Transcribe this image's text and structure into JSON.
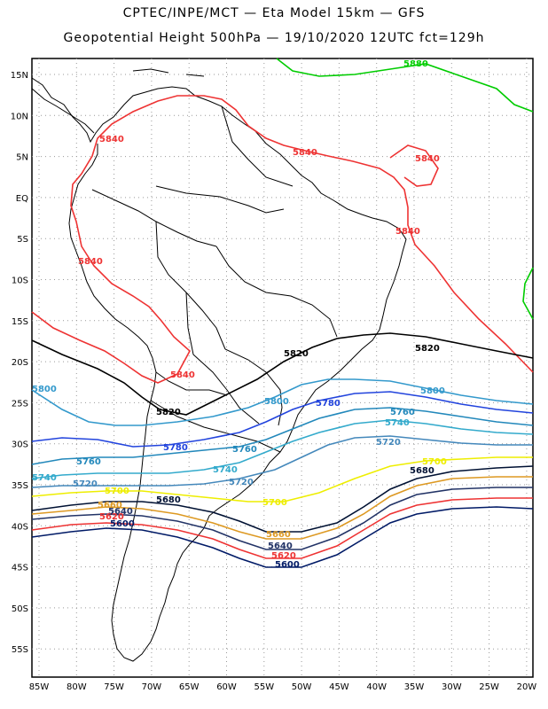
{
  "title_line1": "CPTEC/INPE/MCT —  Eta Model 15km — GFS",
  "title_line2": "Geopotential Height 500hPa — 19/10/2020 12UTC fct=129h",
  "lat_labels": [
    "15N",
    "10N",
    "5N",
    "EQ",
    "5S",
    "10S",
    "15S",
    "20S",
    "25S",
    "30S",
    "35S",
    "40S",
    "45S",
    "50S",
    "55S"
  ],
  "lon_labels": [
    "85W",
    "80W",
    "75W",
    "70W",
    "65W",
    "60W",
    "55W",
    "50W",
    "45W",
    "40W",
    "35W",
    "30W",
    "25W",
    "20W"
  ],
  "contours": [
    {
      "value": 5880,
      "label": "5880",
      "color": "#00cc00"
    },
    {
      "value": 5840,
      "label": "5840",
      "color": "#ee3333"
    },
    {
      "value": 5820,
      "label": "5820",
      "color": "#000000"
    },
    {
      "value": 5800,
      "label": "5800",
      "color": "#3399cc"
    },
    {
      "value": 5780,
      "label": "5780",
      "color": "#2244dd"
    },
    {
      "value": 5760,
      "label": "5760",
      "color": "#2288bb"
    },
    {
      "value": 5740,
      "label": "5740",
      "color": "#33aacc"
    },
    {
      "value": 5720,
      "label": "5720",
      "color": "#4488bb"
    },
    {
      "value": 5700,
      "label": "5700",
      "color": "#eeee00"
    },
    {
      "value": 5680,
      "label": "5680",
      "color": "#001133"
    },
    {
      "value": 5660,
      "label": "5660",
      "color": "#dd9922"
    },
    {
      "value": 5640,
      "label": "5640",
      "color": "#223366"
    },
    {
      "value": 5620,
      "label": "5620",
      "color": "#ee3333"
    },
    {
      "value": 5600,
      "label": "5600",
      "color": "#001a66"
    }
  ],
  "colors": {
    "frame": "#000000",
    "grid": "#999999",
    "coast": "#000000"
  }
}
